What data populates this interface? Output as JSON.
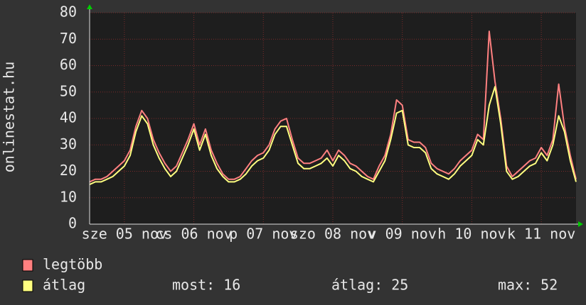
{
  "chart_data": {
    "type": "line",
    "ylabel": "onlinestat.hu",
    "xlim": [
      0,
      168
    ],
    "xticks": [
      {
        "value": 12,
        "label": "sze 05 nov"
      },
      {
        "value": 36,
        "label": "cs 06 nov"
      },
      {
        "value": 60,
        "label": "p 07 nov"
      },
      {
        "value": 84,
        "label": "szo 08 nov"
      },
      {
        "value": 108,
        "label": "v 09 nov"
      },
      {
        "value": 132,
        "label": "h 10 nov"
      },
      {
        "value": 156,
        "label": "k 11 nov"
      }
    ],
    "ylim": [
      0,
      80
    ],
    "yticks": [
      0,
      10,
      20,
      30,
      40,
      50,
      60,
      70,
      80
    ],
    "grid": true,
    "x": [
      0,
      2,
      4,
      6,
      8,
      10,
      12,
      14,
      16,
      18,
      20,
      22,
      24,
      26,
      28,
      30,
      32,
      34,
      36,
      38,
      40,
      42,
      44,
      46,
      48,
      50,
      52,
      54,
      56,
      58,
      60,
      62,
      64,
      66,
      68,
      70,
      72,
      74,
      76,
      78,
      80,
      82,
      84,
      86,
      88,
      90,
      92,
      94,
      96,
      98,
      100,
      102,
      104,
      106,
      108,
      110,
      112,
      114,
      116,
      118,
      120,
      122,
      124,
      126,
      128,
      130,
      132,
      134,
      136,
      138,
      140,
      142,
      144,
      146,
      148,
      150,
      152,
      154,
      156,
      158,
      160,
      162,
      164,
      166,
      168
    ],
    "series": [
      {
        "name": "legtöbb",
        "color": "#ff8080",
        "values": [
          16,
          17,
          17,
          18,
          20,
          22,
          24,
          28,
          37,
          43,
          40,
          32,
          27,
          23,
          20,
          22,
          27,
          32,
          38,
          30,
          36,
          28,
          23,
          19,
          17,
          17,
          18,
          21,
          24,
          26,
          27,
          30,
          36,
          39,
          40,
          32,
          25,
          23,
          23,
          24,
          25,
          28,
          24,
          28,
          26,
          23,
          22,
          20,
          18,
          17,
          22,
          26,
          34,
          47,
          45,
          32,
          31,
          31,
          29,
          23,
          21,
          20,
          19,
          21,
          24,
          26,
          28,
          34,
          32,
          73,
          54,
          40,
          22,
          18,
          20,
          22,
          24,
          25,
          29,
          26,
          32,
          53,
          37,
          26,
          17
        ]
      },
      {
        "name": "átlag",
        "color": "#ffff80",
        "values": [
          15,
          16,
          16,
          17,
          18,
          20,
          22,
          26,
          35,
          41,
          38,
          30,
          25,
          21,
          18,
          20,
          25,
          30,
          36,
          28,
          34,
          26,
          21,
          18,
          16,
          16,
          17,
          19,
          22,
          24,
          25,
          28,
          34,
          37,
          37,
          30,
          23,
          21,
          21,
          22,
          23,
          25,
          22,
          26,
          24,
          21,
          20,
          18,
          17,
          16,
          20,
          24,
          32,
          42,
          43,
          30,
          29,
          29,
          27,
          21,
          19,
          18,
          17,
          19,
          22,
          24,
          26,
          32,
          30,
          45,
          52,
          38,
          20,
          17,
          18,
          20,
          22,
          23,
          27,
          24,
          30,
          41,
          35,
          24,
          16
        ]
      }
    ],
    "stats": [
      {
        "label": "most:",
        "value": 16
      },
      {
        "label": "átlag:",
        "value": 25
      },
      {
        "label": "max:",
        "value": 52
      }
    ]
  }
}
